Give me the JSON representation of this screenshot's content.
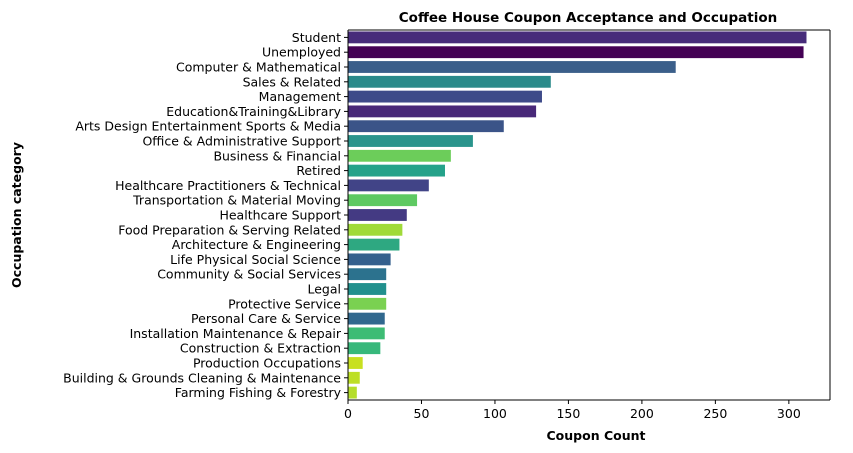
{
  "chart_data": {
    "type": "bar",
    "orientation": "horizontal",
    "title": "Coffee House Coupon Acceptance and Occupation",
    "xlabel": "Coupon Count",
    "ylabel": "Occupation category",
    "xlim": [
      0,
      328
    ],
    "xticks": [
      0,
      50,
      100,
      150,
      200,
      250,
      300
    ],
    "grid": false,
    "categories": [
      "Student",
      "Unemployed",
      "Computer & Mathematical",
      "Sales & Related",
      "Management",
      "Education&Training&Library",
      "Arts Design Entertainment Sports & Media",
      "Office & Administrative Support",
      "Business & Financial",
      "Retired",
      "Healthcare Practitioners & Technical",
      "Transportation & Material Moving",
      "Healthcare Support",
      "Food Preparation & Serving Related",
      "Architecture & Engineering",
      "Life Physical Social Science",
      "Community & Social Services",
      "Legal",
      "Protective Service",
      "Personal Care & Service",
      "Installation Maintenance & Repair",
      "Construction & Extraction",
      "Production Occupations",
      "Building & Grounds Cleaning & Maintenance",
      "Farming Fishing & Forestry"
    ],
    "values": [
      312,
      310,
      223,
      138,
      132,
      128,
      106,
      85,
      70,
      66,
      55,
      47,
      40,
      37,
      35,
      29,
      26,
      26,
      26,
      25,
      25,
      22,
      10,
      8,
      6
    ],
    "colors": [
      "#472c7a",
      "#440154",
      "#3b5f8a",
      "#2a8a8a",
      "#3e4a89",
      "#482878",
      "#3b5488",
      "#2a948c",
      "#6ccd5a",
      "#25a28a",
      "#414487",
      "#5ec962",
      "#443a83",
      "#a0da39",
      "#2ea881",
      "#35608d",
      "#2c728e",
      "#21908d",
      "#7ad151",
      "#31688e",
      "#3dbc74",
      "#37b87b",
      "#c8e020",
      "#bddf26",
      "#b5de2b"
    ]
  }
}
